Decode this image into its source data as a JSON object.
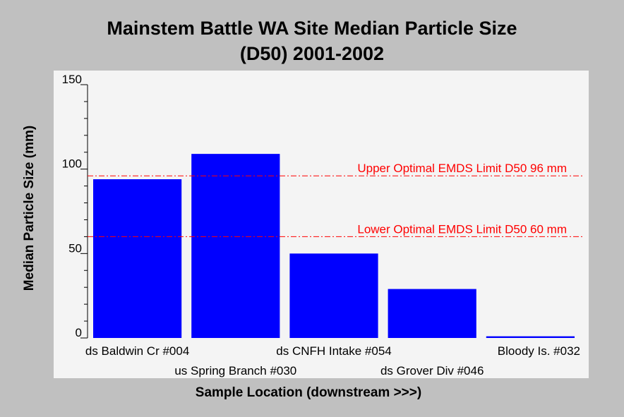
{
  "chart_data": {
    "type": "bar",
    "title": "Mainstem Battle WA Site Median Particle Size",
    "subtitle": "(D50) 2001-2002",
    "xlabel": "Sample Location (downstream >>>)",
    "ylabel": "Median Particle Size (mm)",
    "categories": [
      "ds Baldwin Cr #004",
      "us Spring Branch #030",
      "ds CNFH Intake #054",
      "ds Grover Div #046",
      "Bloody Is. #032"
    ],
    "values": [
      94,
      109,
      50,
      29,
      1
    ],
    "ylim": [
      0,
      150
    ],
    "yticks": [
      0,
      50,
      100,
      150
    ],
    "grid": false,
    "bar_color": "#0000ff",
    "reference_lines": [
      {
        "label": "Upper Optimal EMDS Limit D50 96 mm",
        "value": 96,
        "color": "#ff0000"
      },
      {
        "label": "Lower Optimal EMDS Limit D50 60 mm",
        "value": 60,
        "color": "#ff0000"
      }
    ]
  }
}
